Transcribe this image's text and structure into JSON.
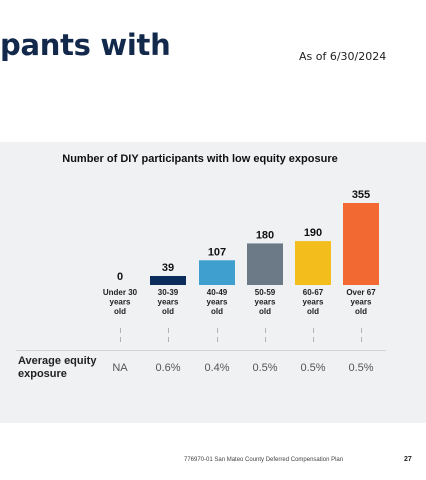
{
  "header": {
    "title_fragment": "pants with",
    "as_of": "As of 6/30/2024"
  },
  "chart_data": {
    "type": "bar",
    "title": "Number of DIY participants with low equity exposure",
    "categories": [
      "Under 30\nyears\nold",
      "30-39\nyears\nold",
      "40-49\nyears\nold",
      "50-59\nyears\nold",
      "60-67\nyears\nold",
      "Over 67\nyears\nold"
    ],
    "values": [
      0,
      39,
      107,
      180,
      190,
      355
    ],
    "data_labels": [
      "0",
      "39",
      "107",
      "180",
      "190",
      "355"
    ],
    "colors": [
      "#0a2d5c",
      "#0a2d5c",
      "#3f9fcf",
      "#6b7a86",
      "#f3bd1b",
      "#f26a32"
    ],
    "ylim": [
      0,
      355
    ],
    "grid": false,
    "legend": "none"
  },
  "table": {
    "row_label": "Average equity\nexposure",
    "values": [
      "NA",
      "0.6%",
      "0.4%",
      "0.5%",
      "0.5%",
      "0.5%"
    ]
  },
  "footer": {
    "text": "776970-01 San Mateo County Deferred Compensation Plan",
    "page": "27"
  }
}
